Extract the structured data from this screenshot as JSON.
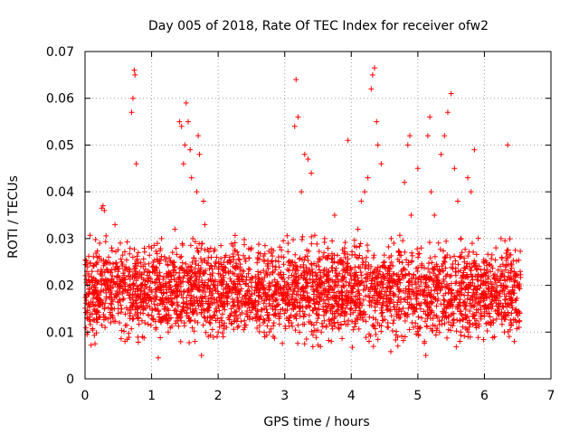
{
  "chart_data": {
    "type": "scatter",
    "title": "Day 005 of 2018, Rate Of TEC Index for receiver ofw2",
    "xlabel": "GPS time / hours",
    "ylabel": "ROTI / TECUs",
    "xlim": [
      0,
      7
    ],
    "ylim": [
      0,
      0.07
    ],
    "xticks": [
      "0",
      "1",
      "2",
      "3",
      "4",
      "5",
      "6",
      "7"
    ],
    "yticks": [
      "0",
      "0.01",
      "0.02",
      "0.03",
      "0.04",
      "0.05",
      "0.06",
      "0.07"
    ],
    "grid": true,
    "marker": "plus",
    "color": "#ff0000",
    "series": [
      {
        "name": "ROTI",
        "points": [
          [
            0.02,
            0.018
          ],
          [
            0.03,
            0.0095
          ],
          [
            0.05,
            0.016
          ],
          [
            0.15,
            0.0075
          ],
          [
            0.18,
            0.026
          ],
          [
            0.22,
            0.029
          ],
          [
            0.25,
            0.0365
          ],
          [
            0.27,
            0.037
          ],
          [
            0.29,
            0.036
          ],
          [
            0.3,
            0.011
          ],
          [
            0.35,
            0.021
          ],
          [
            0.4,
            0.028
          ],
          [
            0.45,
            0.033
          ],
          [
            0.5,
            0.014
          ],
          [
            0.55,
            0.025
          ],
          [
            0.6,
            0.008
          ],
          [
            0.65,
            0.019
          ],
          [
            0.7,
            0.057
          ],
          [
            0.72,
            0.06
          ],
          [
            0.74,
            0.066
          ],
          [
            0.75,
            0.065
          ],
          [
            0.77,
            0.046
          ],
          [
            0.8,
            0.027
          ],
          [
            0.85,
            0.02
          ],
          [
            0.9,
            0.012
          ],
          [
            0.95,
            0.023
          ],
          [
            1.0,
            0.028
          ],
          [
            1.05,
            0.015
          ],
          [
            1.1,
            0.0045
          ],
          [
            1.15,
            0.03
          ],
          [
            1.2,
            0.017
          ],
          [
            1.25,
            0.01
          ],
          [
            1.3,
            0.022
          ],
          [
            1.35,
            0.032
          ],
          [
            1.4,
            0.013
          ],
          [
            1.42,
            0.055
          ],
          [
            1.45,
            0.054
          ],
          [
            1.48,
            0.046
          ],
          [
            1.5,
            0.05
          ],
          [
            1.52,
            0.059
          ],
          [
            1.55,
            0.055
          ],
          [
            1.58,
            0.049
          ],
          [
            1.6,
            0.043
          ],
          [
            1.62,
            0.03
          ],
          [
            1.65,
            0.008
          ],
          [
            1.68,
            0.04
          ],
          [
            1.7,
            0.052
          ],
          [
            1.72,
            0.048
          ],
          [
            1.75,
            0.005
          ],
          [
            1.78,
            0.038
          ],
          [
            1.8,
            0.033
          ],
          [
            1.85,
            0.02
          ],
          [
            1.9,
            0.013
          ],
          [
            1.95,
            0.024
          ],
          [
            2.0,
            0.01
          ],
          [
            2.05,
            0.018
          ],
          [
            2.1,
            0.026
          ],
          [
            2.2,
            0.014
          ],
          [
            2.3,
            0.022
          ],
          [
            2.4,
            0.011
          ],
          [
            2.5,
            0.028
          ],
          [
            2.6,
            0.016
          ],
          [
            2.7,
            0.009
          ],
          [
            2.8,
            0.025
          ],
          [
            2.9,
            0.014
          ],
          [
            3.0,
            0.02
          ],
          [
            3.05,
            0.029
          ],
          [
            3.1,
            0.012
          ],
          [
            3.15,
            0.054
          ],
          [
            3.17,
            0.064
          ],
          [
            3.2,
            0.056
          ],
          [
            3.25,
            0.04
          ],
          [
            3.3,
            0.048
          ],
          [
            3.35,
            0.047
          ],
          [
            3.4,
            0.044
          ],
          [
            3.45,
            0.016
          ],
          [
            3.5,
            0.025
          ],
          [
            3.55,
            0.01
          ],
          [
            3.6,
            0.03
          ],
          [
            3.65,
            0.018
          ],
          [
            3.7,
            0.008
          ],
          [
            3.75,
            0.035
          ],
          [
            3.8,
            0.022
          ],
          [
            3.85,
            0.014
          ],
          [
            3.9,
            0.028
          ],
          [
            3.95,
            0.051
          ],
          [
            4.0,
            0.015
          ],
          [
            4.05,
            0.02
          ],
          [
            4.1,
            0.032
          ],
          [
            4.15,
            0.038
          ],
          [
            4.2,
            0.04
          ],
          [
            4.25,
            0.043
          ],
          [
            4.3,
            0.062
          ],
          [
            4.32,
            0.065
          ],
          [
            4.35,
            0.0665
          ],
          [
            4.38,
            0.055
          ],
          [
            4.4,
            0.05
          ],
          [
            4.45,
            0.046
          ],
          [
            4.5,
            0.025
          ],
          [
            4.55,
            0.012
          ],
          [
            4.6,
            0.03
          ],
          [
            4.65,
            0.018
          ],
          [
            4.7,
            0.007
          ],
          [
            4.75,
            0.023
          ],
          [
            4.8,
            0.042
          ],
          [
            4.85,
            0.05
          ],
          [
            4.88,
            0.052
          ],
          [
            4.9,
            0.035
          ],
          [
            4.95,
            0.015
          ],
          [
            5.0,
            0.045
          ],
          [
            5.05,
            0.028
          ],
          [
            5.1,
            0.008
          ],
          [
            5.12,
            0.005
          ],
          [
            5.15,
            0.052
          ],
          [
            5.18,
            0.056
          ],
          [
            5.2,
            0.04
          ],
          [
            5.25,
            0.035
          ],
          [
            5.3,
            0.02
          ],
          [
            5.35,
            0.048
          ],
          [
            5.4,
            0.052
          ],
          [
            5.45,
            0.057
          ],
          [
            5.5,
            0.061
          ],
          [
            5.55,
            0.045
          ],
          [
            5.6,
            0.038
          ],
          [
            5.65,
            0.03
          ],
          [
            5.7,
            0.025
          ],
          [
            5.75,
            0.043
          ],
          [
            5.8,
            0.04
          ],
          [
            5.85,
            0.049
          ],
          [
            5.9,
            0.022
          ],
          [
            5.95,
            0.014
          ],
          [
            6.0,
            0.018
          ],
          [
            6.05,
            0.012
          ],
          [
            6.1,
            0.016
          ],
          [
            6.15,
            0.009
          ],
          [
            6.2,
            0.014
          ],
          [
            6.25,
            0.03
          ],
          [
            6.3,
            0.01
          ],
          [
            6.35,
            0.05
          ],
          [
            6.4,
            0.012
          ],
          [
            6.45,
            0.008
          ],
          [
            6.5,
            0.02
          ],
          [
            6.52,
            0.011
          ]
        ]
      }
    ],
    "density": {
      "description": "dense band of points",
      "x_range": [
        0.0,
        6.55
      ],
      "y_band": [
        0.005,
        0.03
      ],
      "count": 3200
    }
  }
}
